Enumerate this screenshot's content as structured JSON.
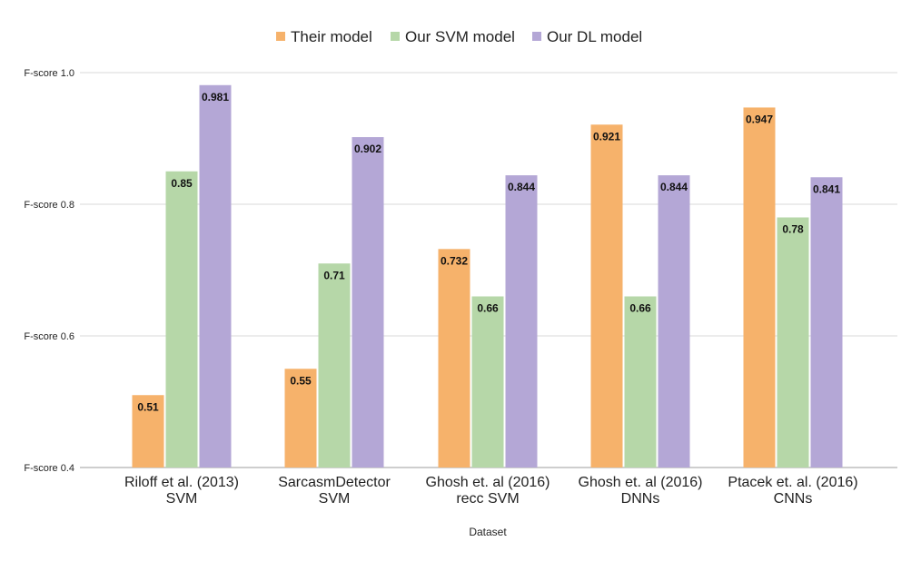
{
  "chart_data": {
    "type": "bar",
    "title": "",
    "xlabel": "Dataset",
    "ylabel": "",
    "ylim": [
      0.4,
      1.0
    ],
    "yticks": [
      {
        "value": 0.4,
        "label": "F-score 0.4"
      },
      {
        "value": 0.6,
        "label": "F-score 0.6"
      },
      {
        "value": 0.8,
        "label": "F-score 0.8"
      },
      {
        "value": 1.0,
        "label": "F-score 1.0"
      }
    ],
    "grid": true,
    "legend_position": "top-center",
    "categories": [
      [
        "Riloff et al. (2013)",
        "SVM"
      ],
      [
        "SarcasmDetector",
        "SVM"
      ],
      [
        "Ghosh et. al (2016)",
        "recc SVM"
      ],
      [
        "Ghosh et. al (2016)",
        "DNNs"
      ],
      [
        "Ptacek et. al. (2016)",
        "CNNs"
      ]
    ],
    "series": [
      {
        "name": "Their model",
        "color": "#f6b26b",
        "values": [
          0.51,
          0.55,
          0.732,
          0.921,
          0.947
        ]
      },
      {
        "name": "Our SVM model",
        "color": "#b6d7a8",
        "values": [
          0.85,
          0.71,
          0.66,
          0.66,
          0.78
        ]
      },
      {
        "name": "Our DL model",
        "color": "#b4a7d6",
        "values": [
          0.981,
          0.902,
          0.844,
          0.844,
          0.841
        ]
      }
    ]
  }
}
